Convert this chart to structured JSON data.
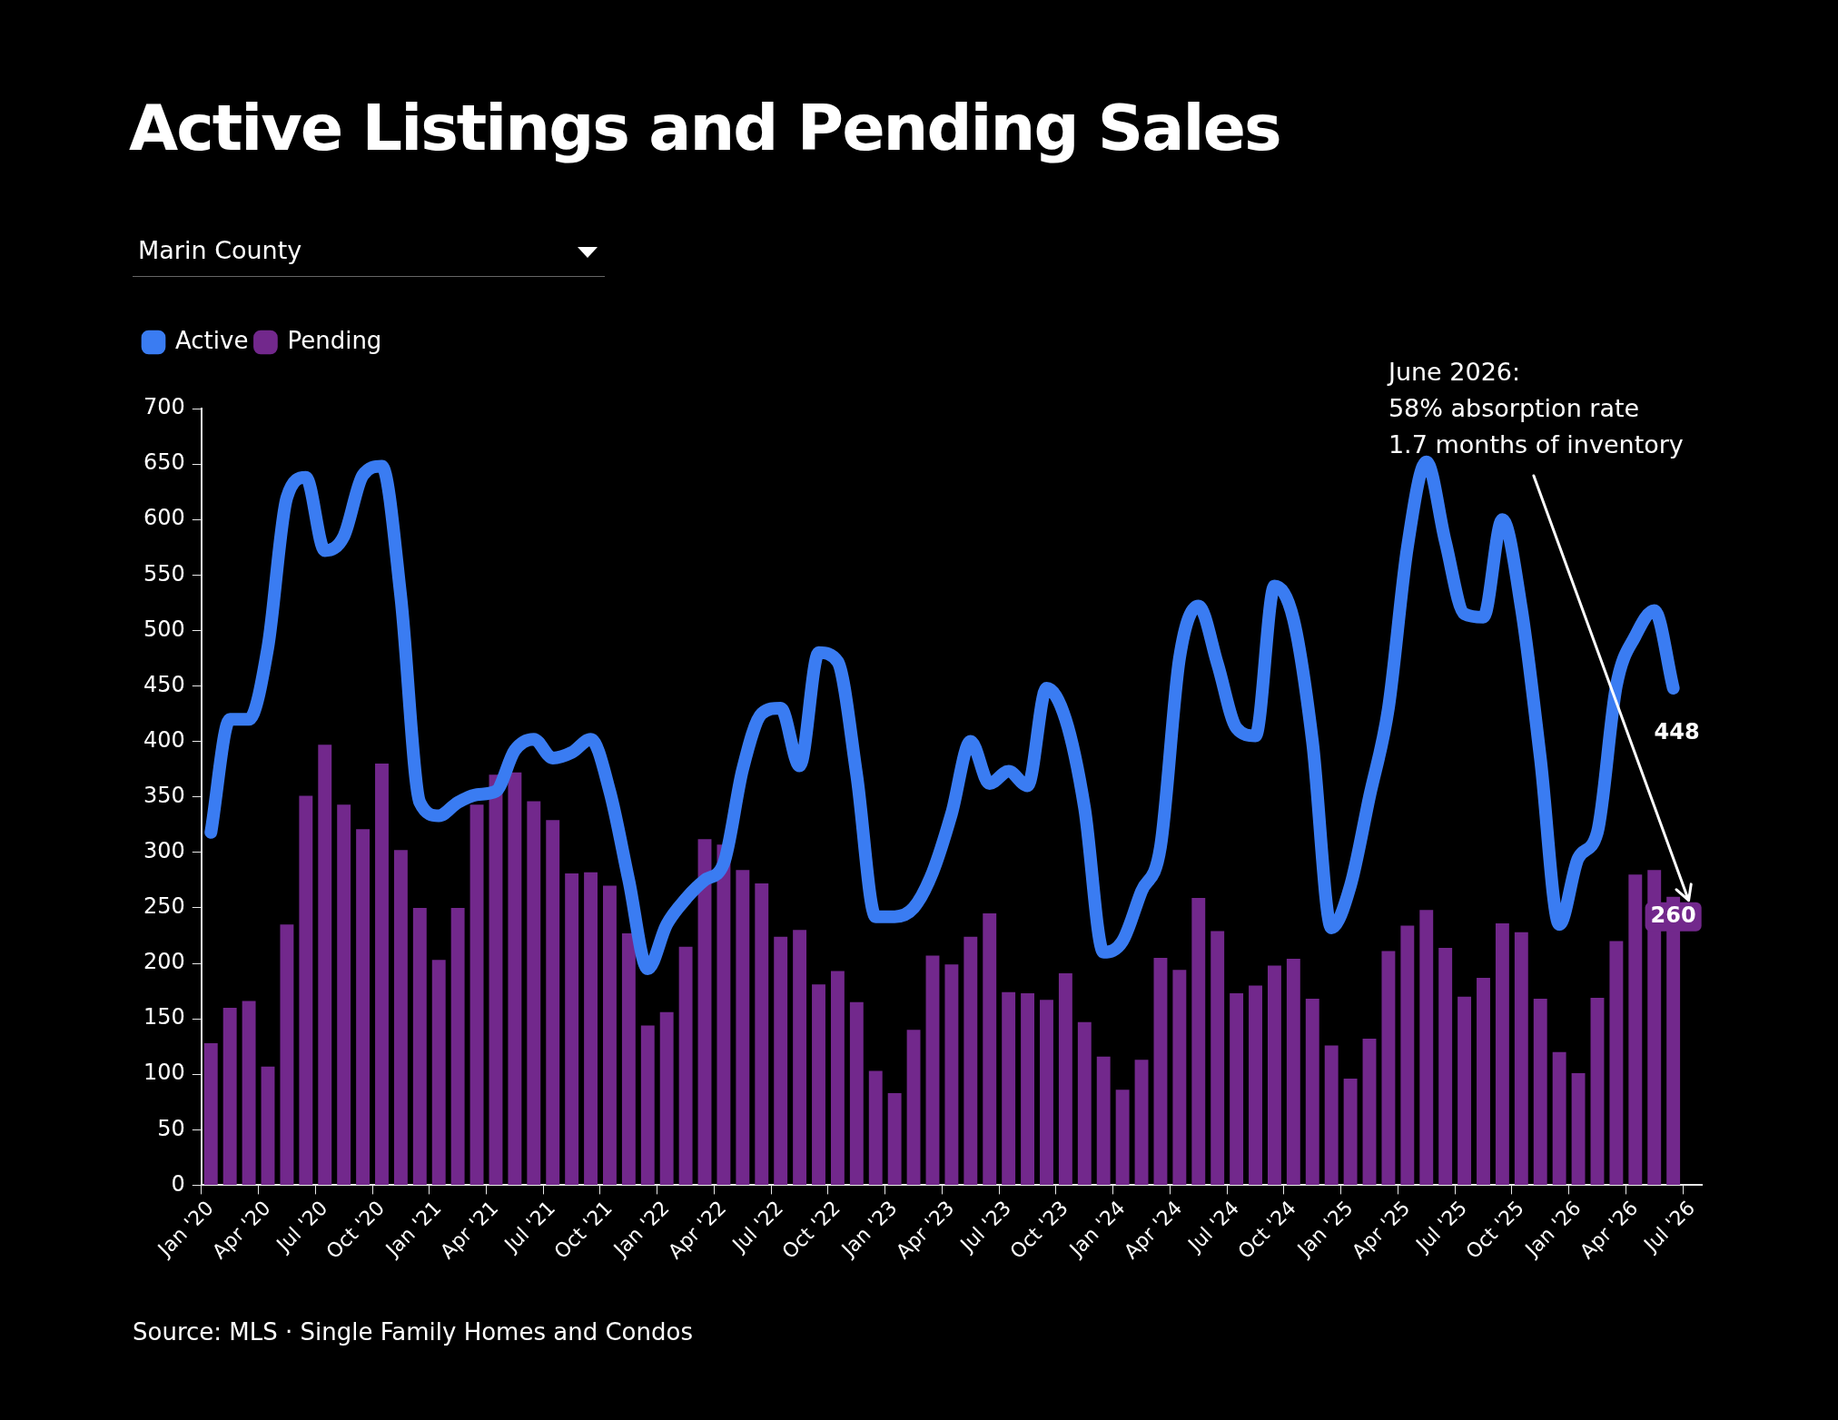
{
  "chart_data": {
    "type": "bar",
    "title": "Active Listings and Pending Sales",
    "subtitle": "Marin County",
    "categories": [
      "Jan '20",
      null,
      null,
      "Apr '20",
      null,
      null,
      "Jul '20",
      null,
      null,
      "Oct '20",
      null,
      null,
      "Jan '21",
      null,
      null,
      "Apr '21",
      null,
      null,
      "Jul '21",
      null,
      null,
      "Oct '21",
      null,
      null,
      "Jan '22",
      null,
      null,
      "Apr '22",
      null,
      null,
      "Jul '22",
      null,
      null,
      "Oct '22",
      null,
      null,
      "Jan '23",
      null,
      null,
      "Apr '23",
      null,
      null,
      "Jul '23",
      null,
      null,
      "Oct '23",
      null,
      null,
      "Jan '24",
      null,
      null,
      "Apr '24",
      null,
      null,
      "Jul '24",
      null,
      null,
      "Oct '24",
      null,
      null,
      "Jan '25",
      null,
      null,
      "Apr '25",
      null,
      null,
      "Jul '25",
      null,
      null,
      "Oct '25",
      null,
      null,
      "Jan '26",
      null,
      null,
      "Apr '26",
      null,
      null,
      "Jul '26"
    ],
    "series": [
      {
        "name": "Active",
        "type": "line",
        "color": "#3a7cf2",
        "values": [
          318,
          420,
          420,
          485,
          620,
          638,
          572,
          585,
          640,
          648,
          530,
          345,
          333,
          345,
          352,
          355,
          392,
          402,
          385,
          390,
          402,
          355,
          275,
          195,
          235,
          258,
          275,
          290,
          375,
          425,
          430,
          378,
          480,
          472,
          370,
          242,
          242,
          250,
          282,
          335,
          400,
          362,
          373,
          360,
          448,
          420,
          340,
          210,
          220,
          265,
          305,
          475,
          522,
          470,
          412,
          405,
          540,
          510,
          400,
          232,
          270,
          350,
          430,
          575,
          652,
          580,
          515,
          512,
          600,
          520,
          385,
          235,
          295,
          318,
          450,
          495,
          518,
          448,
          null
        ],
        "value_labels": [
          null,
          null,
          null,
          null,
          null,
          null,
          null,
          null,
          null,
          null,
          null,
          null,
          null,
          null,
          null,
          null,
          null,
          null,
          null,
          null,
          null,
          null,
          null,
          null,
          null,
          null,
          null,
          null,
          null,
          null,
          null,
          null,
          null,
          null,
          null,
          null,
          null,
          null,
          null,
          null,
          null,
          null,
          null,
          null,
          null,
          null,
          null,
          null,
          null,
          null,
          null,
          null,
          null,
          null,
          null,
          null,
          null,
          null,
          null,
          null,
          null,
          null,
          null,
          null,
          null,
          null,
          null,
          null,
          null,
          null,
          null,
          null,
          null,
          null,
          null,
          null,
          null,
          "448",
          null
        ]
      },
      {
        "name": "Pending",
        "type": "bar",
        "color": "#72288c",
        "values": [
          128,
          160,
          166,
          107,
          235,
          351,
          397,
          343,
          321,
          380,
          302,
          250,
          203,
          250,
          343,
          370,
          372,
          346,
          329,
          281,
          282,
          270,
          227,
          144,
          156,
          215,
          312,
          307,
          284,
          272,
          224,
          230,
          181,
          193,
          165,
          103,
          83,
          140,
          207,
          199,
          224,
          245,
          174,
          173,
          167,
          191,
          147,
          116,
          86,
          113,
          205,
          194,
          259,
          229,
          173,
          180,
          198,
          204,
          168,
          126,
          96,
          132,
          211,
          234,
          248,
          214,
          170,
          187,
          236,
          228,
          168,
          120,
          101,
          169,
          220,
          280,
          284,
          260,
          null
        ],
        "value_labels": [
          null,
          null,
          null,
          null,
          null,
          null,
          null,
          null,
          null,
          null,
          null,
          null,
          null,
          null,
          null,
          null,
          null,
          null,
          null,
          null,
          null,
          null,
          null,
          null,
          null,
          null,
          null,
          null,
          null,
          null,
          null,
          null,
          null,
          null,
          null,
          null,
          null,
          null,
          null,
          null,
          null,
          null,
          null,
          null,
          null,
          null,
          null,
          null,
          null,
          null,
          null,
          null,
          null,
          null,
          null,
          null,
          null,
          null,
          null,
          null,
          null,
          null,
          null,
          null,
          null,
          null,
          null,
          null,
          null,
          null,
          null,
          null,
          null,
          null,
          null,
          null,
          null,
          "260",
          null
        ]
      }
    ],
    "ylim": [
      0,
      700
    ],
    "yticks": [
      0,
      50,
      100,
      150,
      200,
      250,
      300,
      350,
      400,
      450,
      500,
      550,
      600,
      650,
      700
    ],
    "legend": "top left",
    "annotations": [
      "June 2026:\n58% absorption rate\n1.7 months of inventory",
      "Source: MLS · Single Family Homes and Condos"
    ]
  }
}
